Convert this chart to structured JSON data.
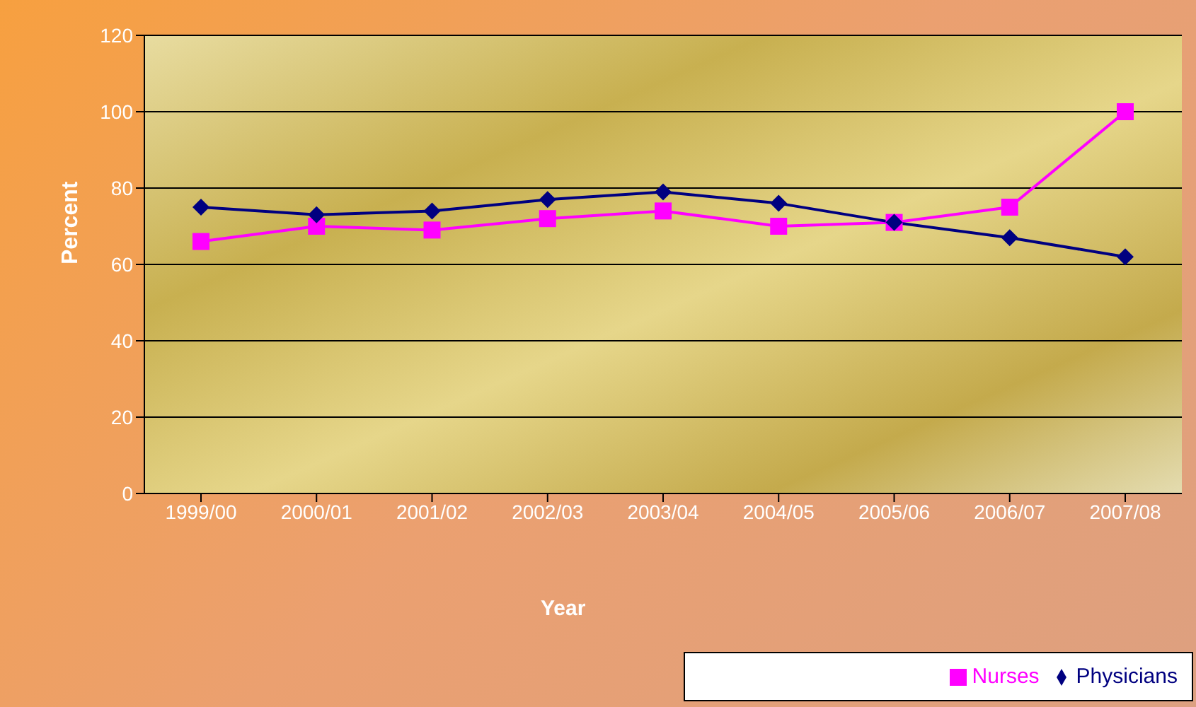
{
  "chart_data": {
    "type": "line",
    "xlabel": "Year",
    "ylabel": "Percent",
    "categories": [
      "1999/00",
      "2000/01",
      "2001/02",
      "2002/03",
      "2003/04",
      "2004/05",
      "2005/06",
      "2006/07",
      "2007/08"
    ],
    "series": [
      {
        "name": "Physicians",
        "color": "#000080",
        "marker": "diamond",
        "values": [
          75,
          73,
          74,
          77,
          79,
          76,
          71,
          67,
          62
        ]
      },
      {
        "name": "Nurses",
        "color": "#ff00ff",
        "marker": "square",
        "values": [
          66,
          70,
          69,
          72,
          74,
          70,
          71,
          75,
          100
        ]
      }
    ],
    "ylim": [
      0,
      120
    ],
    "yticks": [
      0,
      20,
      40,
      60,
      80,
      100,
      120
    ],
    "grid": "y",
    "legend": "bottom right"
  }
}
